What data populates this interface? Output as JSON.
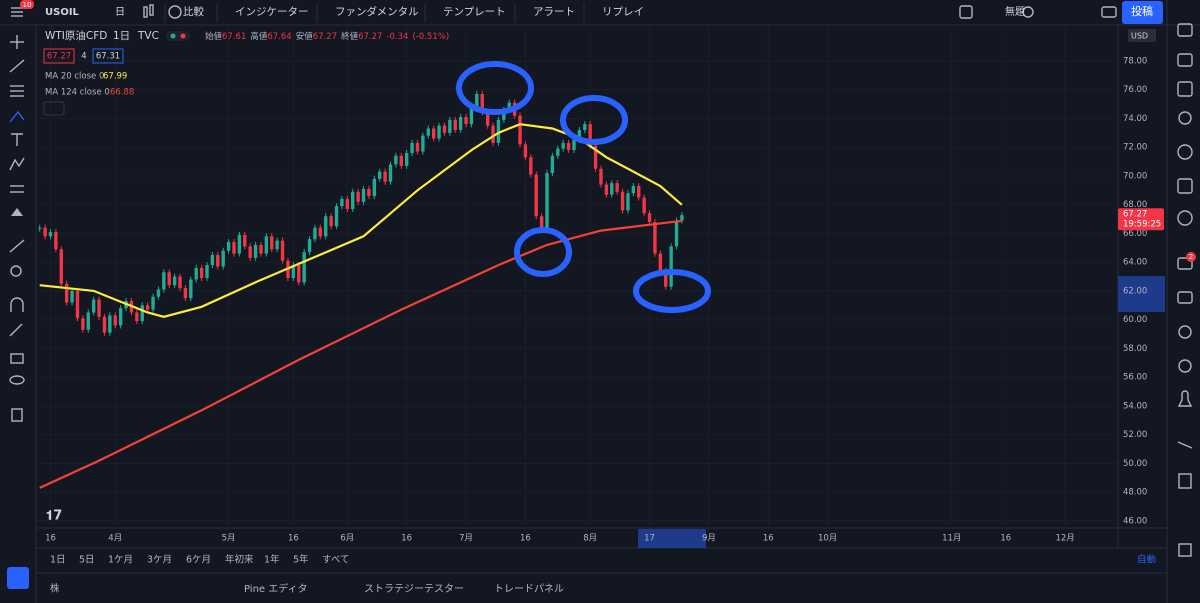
{
  "toolbar": {
    "badge": "10",
    "symbol": "USOIL",
    "interval": "日",
    "buttons": [
      "比較",
      "インジケーター",
      "ファンダメンタル",
      "テンプレート",
      "アラート",
      "リプレイ"
    ],
    "layout_name": "無題",
    "publish": "投稿"
  },
  "chart_data": {
    "type": "candlestick",
    "title": "WTI原油CFD",
    "interval": "1日",
    "exchange": "TVC",
    "ohlc": [
      {
        "label": "始値",
        "value": 67.61
      },
      {
        "label": "高値",
        "value": 67.64
      },
      {
        "label": "安値",
        "value": 67.27
      },
      {
        "label": "終値",
        "value": 67.27
      }
    ],
    "change": -0.34,
    "change_pct": "(-0.51%)",
    "quote": {
      "bid": 67.27,
      "spread": 4,
      "ask": 67.31
    },
    "up_color": "#22ab94",
    "down_color": "#f23645",
    "closes": [
      66.4,
      65.8,
      66.1,
      64.9,
      62.5,
      61.2,
      62.0,
      60.1,
      59.3,
      60.5,
      61.4,
      60.2,
      59.1,
      60.3,
      59.6,
      60.8,
      61.3,
      60.5,
      59.9,
      61.0,
      60.7,
      61.6,
      62.1,
      63.3,
      62.4,
      63.0,
      62.2,
      61.5,
      62.8,
      63.6,
      62.9,
      63.8,
      64.5,
      63.7,
      64.8,
      65.4,
      64.6,
      65.9,
      65.1,
      64.3,
      65.2,
      64.6,
      65.8,
      64.9,
      65.5,
      64.1,
      62.9,
      63.8,
      62.6,
      64.7,
      65.6,
      66.4,
      65.8,
      67.2,
      66.5,
      67.9,
      68.4,
      67.7,
      68.9,
      68.2,
      69.1,
      68.6,
      69.8,
      70.3,
      69.6,
      70.8,
      71.4,
      70.7,
      71.6,
      72.3,
      71.7,
      72.8,
      73.3,
      72.6,
      73.5,
      73.0,
      73.9,
      73.2,
      74.1,
      73.6,
      74.8,
      75.7,
      74.4,
      73.5,
      72.3,
      73.9,
      74.6,
      75.1,
      74.2,
      72.2,
      71.3,
      70.1,
      67.2,
      66.3,
      70.2,
      71.4,
      71.9,
      72.3,
      71.8,
      72.5,
      73.2,
      73.6,
      72.1,
      70.5,
      69.4,
      68.7,
      69.5,
      68.9,
      67.6,
      68.8,
      69.3,
      68.5,
      67.4,
      66.8,
      64.6,
      63.4,
      62.3,
      65.1,
      66.9,
      67.27
    ],
    "series": [
      {
        "name": "MA 20 close 0",
        "color": "#ffeb3b",
        "last_value": 67.99,
        "x": [
          0,
          10,
          20,
          23,
          30,
          40,
          50,
          60,
          70,
          80,
          85,
          89,
          95,
          100,
          105,
          110,
          115,
          119
        ],
        "values": [
          62.4,
          62.0,
          60.5,
          60.2,
          60.9,
          62.6,
          64.2,
          65.8,
          69.0,
          71.8,
          73.0,
          73.6,
          73.3,
          72.6,
          71.3,
          70.3,
          69.3,
          67.99
        ]
      },
      {
        "name": "MA 124 close 0",
        "color": "#f44336",
        "last_value": 66.88,
        "x": [
          0,
          11,
          30,
          48,
          67,
          85,
          94,
          104,
          119
        ],
        "values": [
          48.3,
          50.2,
          53.7,
          57.2,
          60.7,
          63.8,
          65.2,
          66.2,
          66.88
        ]
      }
    ],
    "last_price": {
      "value": 67.27,
      "countdown": "19:59:25"
    },
    "currency": "USD",
    "ylim": [
      45.51,
      80.5
    ],
    "yticks": [
      {
        "value": 78,
        "label": "78.00"
      },
      {
        "value": 76,
        "label": "76.00"
      },
      {
        "value": 74,
        "label": "74.00"
      },
      {
        "value": 72,
        "label": "72.00"
      },
      {
        "value": 70,
        "label": "70.00"
      },
      {
        "value": 68,
        "label": "68.00"
      },
      {
        "value": 66,
        "label": "66.00"
      },
      {
        "value": 64,
        "label": "64.00"
      },
      {
        "value": 62,
        "label": "62.00"
      },
      {
        "value": 60,
        "label": "60.00"
      },
      {
        "value": 58,
        "label": "58.00"
      },
      {
        "value": 56,
        "label": "56.00"
      },
      {
        "value": 54,
        "label": "54.00"
      },
      {
        "value": 52,
        "label": "52.00"
      },
      {
        "value": 50,
        "label": "50.00"
      },
      {
        "value": 48,
        "label": "48.00"
      },
      {
        "value": 46,
        "label": "46.00"
      }
    ],
    "xlim": [
      -0.5,
      199.8
    ],
    "xticks": [
      {
        "value": 2,
        "label": "16"
      },
      {
        "value": 14,
        "label": "4月"
      },
      {
        "value": 35,
        "label": "5月"
      },
      {
        "value": 47,
        "label": "16"
      },
      {
        "value": 57,
        "label": "6月"
      },
      {
        "value": 68,
        "label": "16"
      },
      {
        "value": 79,
        "label": "7月"
      },
      {
        "value": 90,
        "label": "16"
      },
      {
        "value": 102,
        "label": "8月"
      },
      {
        "value": 113,
        "label": "17"
      },
      {
        "value": 124,
        "label": "9月"
      },
      {
        "value": 135,
        "label": "16"
      },
      {
        "value": 146,
        "label": "10月"
      },
      {
        "value": 169,
        "label": "11月"
      },
      {
        "value": 179,
        "label": "16"
      },
      {
        "value": 190,
        "label": "12月"
      }
    ],
    "grid": true
  },
  "range_buttons": [
    "1日",
    "5日",
    "1ケ月",
    "3ケ月",
    "6ケ月",
    "年初来",
    "1年",
    "5年",
    "すべて"
  ],
  "bottom_tabs": [
    "Pine エディタ",
    "ストラテジーテスター",
    "トレードパネル"
  ],
  "bottom_left": "株",
  "auto": "自動",
  "notification_badge": "2"
}
